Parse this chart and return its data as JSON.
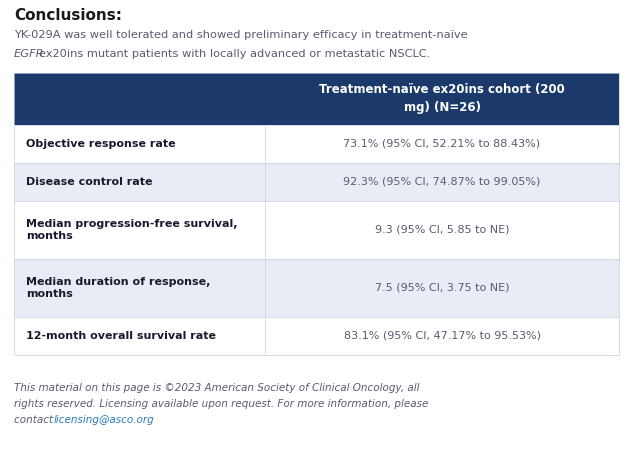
{
  "background_color": "#ffffff",
  "title_text": "Conclusions:",
  "title_color": "#1a1a1a",
  "intro_line1": "YK-029A was well tolerated and showed preliminary efficacy in treatment-naïve",
  "intro_line2_italic": "EGFR",
  "intro_line2_rest": "ex20ins mutant patients with locally advanced or metastatic NSCLC.",
  "intro_color": "#5a5a72",
  "header_bg": "#1b3a6b",
  "header_text": "Treatment-naïve ex20ins cohort (200\nmg) (N=26)",
  "header_text_color": "#ffffff",
  "row_labels": [
    "Objective response rate",
    "Disease control rate",
    "Median progression-free survival,\nmonths",
    "Median duration of response,\nmonths",
    "12-month overall survival rate"
  ],
  "row_values": [
    "73.1% (95% CI, 52.21% to 88.43%)",
    "92.3% (95% CI, 74.87% to 99.05%)",
    "9.3 (95% CI, 5.85 to NE)",
    "7.5 (95% CI, 3.75 to NE)",
    "83.1% (95% CI, 47.17% to 95.53%)"
  ],
  "row_bg_white": "#ffffff",
  "row_bg_gray": "#e8edf5",
  "label_color": "#1a1a2e",
  "value_color": "#5a5a72",
  "border_color": "#c8d0e0",
  "footer_line1": "This material on this page is ©2023 American Society of Clinical Oncology, all",
  "footer_line2": "rights reserved. Licensing available upon request. For more information, please",
  "footer_line3_pre": "contact ",
  "footer_link": "licensing@asco.org",
  "footer_color": "#5a5a72",
  "footer_link_color": "#2a7abf",
  "fig_width": 6.33,
  "fig_height": 4.57,
  "dpi": 100
}
